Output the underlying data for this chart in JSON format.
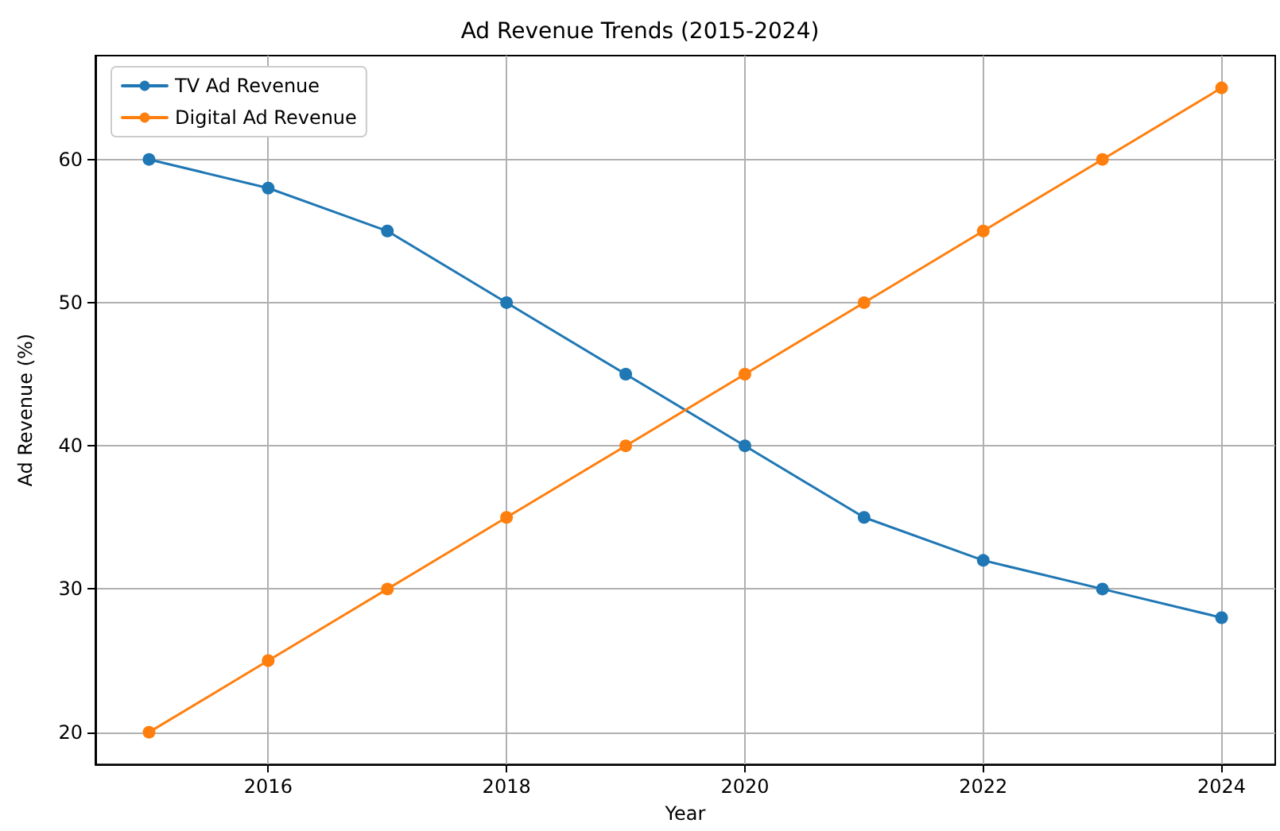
{
  "chart_data": {
    "type": "line",
    "title": "Ad Revenue Trends (2015-2024)",
    "xlabel": "Year",
    "ylabel": "Ad Revenue (%)",
    "x": [
      2015,
      2016,
      2017,
      2018,
      2019,
      2020,
      2021,
      2022,
      2023,
      2024
    ],
    "series": [
      {
        "name": "TV Ad Revenue",
        "color": "#1f77b4",
        "values": [
          60,
          58,
          55,
          50,
          45,
          40,
          35,
          32,
          30,
          28
        ]
      },
      {
        "name": "Digital Ad Revenue",
        "color": "#ff7f0e",
        "values": [
          20,
          25,
          30,
          35,
          40,
          45,
          50,
          55,
          60,
          65
        ]
      }
    ],
    "xlim": [
      2014.55,
      2024.45
    ],
    "xticks": [
      2016,
      2018,
      2020,
      2022,
      2024
    ],
    "ylim": [
      17.75,
      67.25
    ],
    "yticks": [
      20,
      30,
      40,
      50,
      60
    ],
    "grid": true,
    "legend": "top left",
    "marker": "circle",
    "line_style": "solid"
  }
}
